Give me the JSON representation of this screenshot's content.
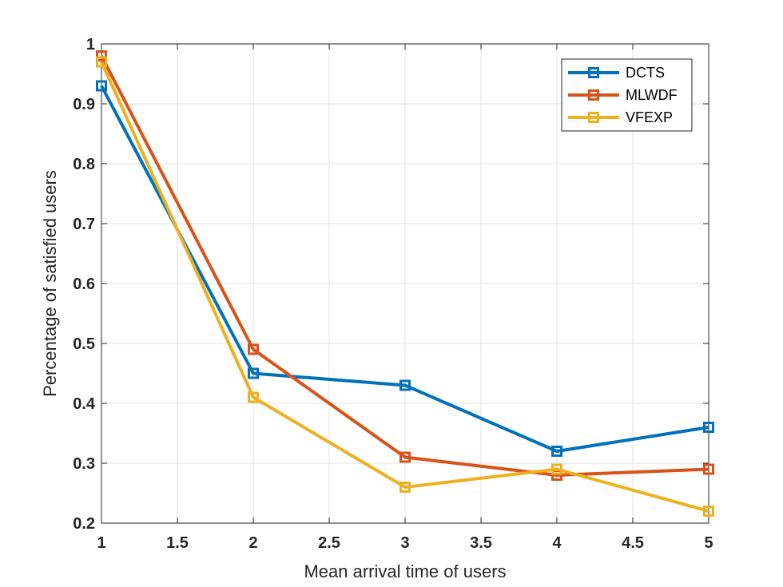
{
  "chart_data": {
    "type": "line",
    "x": [
      1,
      2,
      3,
      4,
      5
    ],
    "series": [
      {
        "name": "DCTS",
        "color": "#0072BD",
        "values": [
          0.93,
          0.45,
          0.43,
          0.32,
          0.36
        ]
      },
      {
        "name": "MLWDF",
        "color": "#D95319",
        "values": [
          0.98,
          0.49,
          0.31,
          0.28,
          0.29
        ]
      },
      {
        "name": "VFEXP",
        "color": "#EDB120",
        "values": [
          0.97,
          0.41,
          0.26,
          0.29,
          0.22
        ]
      }
    ],
    "xlabel": "Mean arrival time of users",
    "ylabel": "Percentage of satisfied users",
    "xlim": [
      1,
      5
    ],
    "ylim": [
      0.2,
      1
    ],
    "xticks": [
      1,
      1.5,
      2,
      2.5,
      3,
      3.5,
      4,
      4.5,
      5
    ],
    "xtick_labels": [
      "1",
      "1.5",
      "2",
      "2.5",
      "3",
      "3.5",
      "4",
      "4.5",
      "5"
    ],
    "yticks": [
      0.2,
      0.3,
      0.4,
      0.5,
      0.6,
      0.7,
      0.8,
      0.9,
      1
    ],
    "ytick_labels": [
      "0.2",
      "0.3",
      "0.4",
      "0.5",
      "0.6",
      "0.7",
      "0.8",
      "0.9",
      "1"
    ],
    "grid": true,
    "marker": "square",
    "legend_position": "top-right"
  }
}
